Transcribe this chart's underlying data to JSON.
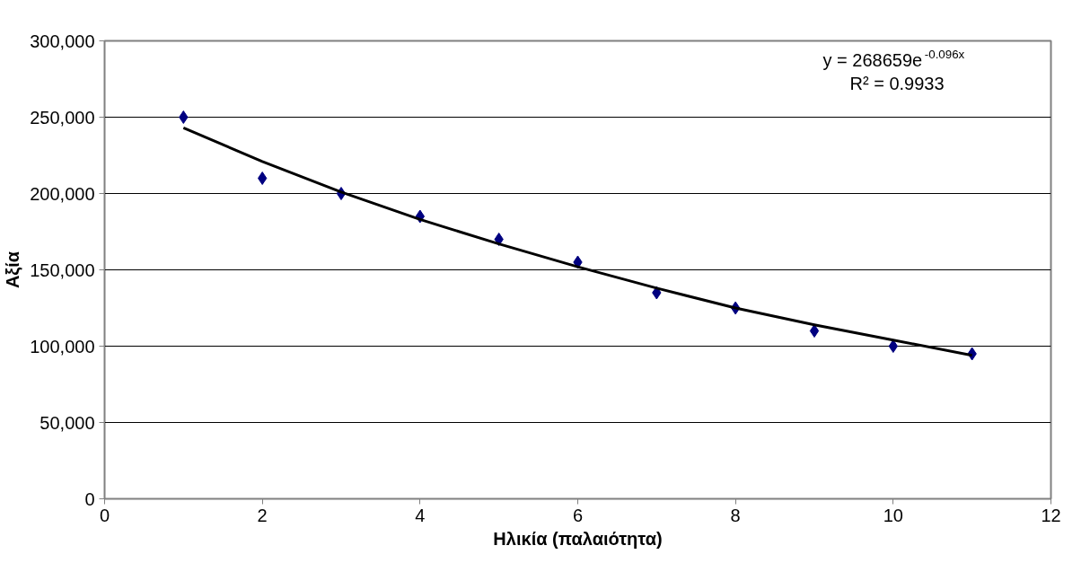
{
  "chart_data": {
    "type": "scatter",
    "xlabel": "Ηλικία (παλαιότητα)",
    "ylabel": "Αξία",
    "x": [
      1,
      2,
      3,
      4,
      5,
      6,
      7,
      8,
      9,
      10,
      11
    ],
    "series": [
      {
        "color": "#000080",
        "marker": "diamond",
        "values": [
          250000,
          210000,
          200000,
          185000,
          170000,
          155000,
          135000,
          125000,
          110000,
          100000,
          95000
        ]
      },
      {
        "type": "line",
        "color": "#000000",
        "marker": "none",
        "line_style": "solid",
        "x": [
          1,
          2,
          3,
          4,
          5,
          6,
          7,
          8,
          9,
          10,
          11
        ],
        "values": [
          243000,
          221000,
          201000,
          183000,
          167000,
          152000,
          138000,
          125000,
          114000,
          104000,
          94000
        ]
      }
    ],
    "xlim": [
      0,
      12
    ],
    "xticks": [
      0,
      2,
      4,
      6,
      8,
      10,
      12
    ],
    "ylim": [
      0,
      300000
    ],
    "yticks": [
      {
        "value": 0,
        "label": "0"
      },
      {
        "value": 50000,
        "label": "50,000"
      },
      {
        "value": 100000,
        "label": "100,000"
      },
      {
        "value": 150000,
        "label": "150,000"
      },
      {
        "value": 200000,
        "label": "200,000"
      },
      {
        "value": 250000,
        "label": "250,000"
      },
      {
        "value": 300000,
        "label": "300,000"
      }
    ],
    "grid": "y",
    "annotations": [
      "y = 268659e$^{-0.096x}$",
      "R² = 0.9933"
    ]
  }
}
